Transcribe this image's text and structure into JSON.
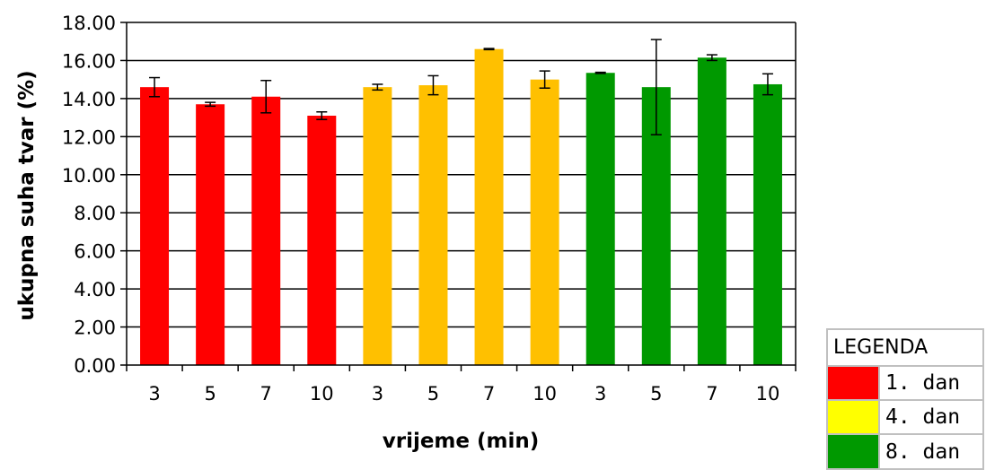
{
  "chart_data": {
    "type": "bar",
    "title": "",
    "xlabel": "vrijeme (min)",
    "ylabel": "ukupna suha tvar (%)",
    "ylim": [
      0,
      18
    ],
    "ytick_step": 2,
    "ytick_labels": [
      "0.00",
      "2.00",
      "4.00",
      "6.00",
      "8.00",
      "10.00",
      "12.00",
      "14.00",
      "16.00",
      "18.00"
    ],
    "categories": [
      "3",
      "5",
      "7",
      "10",
      "3",
      "5",
      "7",
      "10",
      "3",
      "5",
      "7",
      "10"
    ],
    "values": [
      14.6,
      13.7,
      14.1,
      13.1,
      14.6,
      14.7,
      16.6,
      15.0,
      15.35,
      14.6,
      16.15,
      14.75
    ],
    "errors": [
      0.5,
      0.1,
      0.85,
      0.2,
      0.15,
      0.5,
      0.03,
      0.45,
      0.03,
      2.5,
      0.15,
      0.55
    ],
    "bar_colors": [
      "#ff0000",
      "#ff0000",
      "#ff0000",
      "#ff0000",
      "#ffc000",
      "#ffc000",
      "#ffc000",
      "#ffc000",
      "#009900",
      "#009900",
      "#009900",
      "#009900"
    ],
    "grid": true,
    "legend": {
      "placement": "bottom-right",
      "title": "LEGENDA",
      "entries": [
        {
          "label": "1. dan",
          "color": "#ff0000"
        },
        {
          "label": "4. dan",
          "color": "#ffff00"
        },
        {
          "label": "8. dan",
          "color": "#009900"
        }
      ]
    }
  }
}
